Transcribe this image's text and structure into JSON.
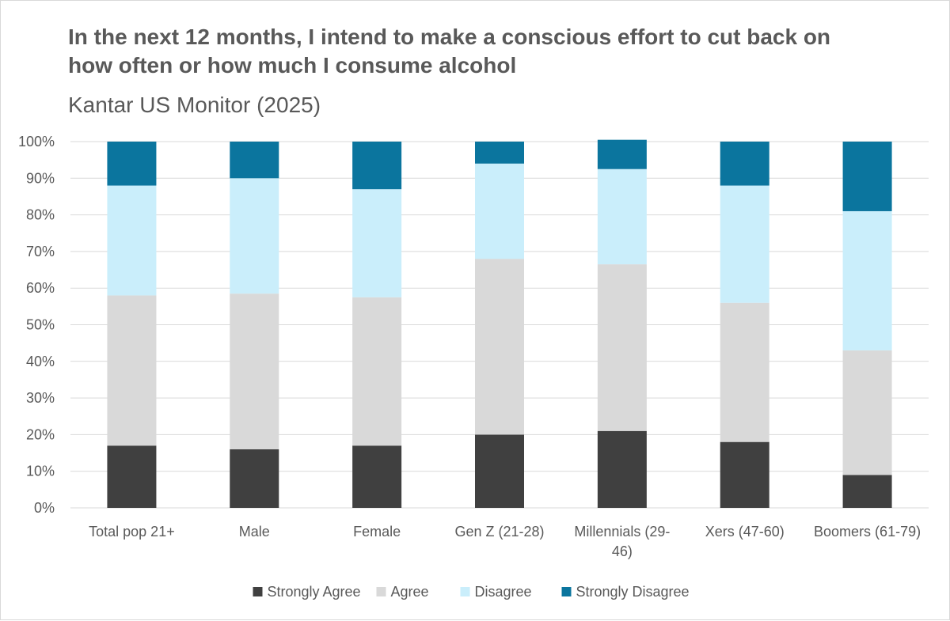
{
  "title": "In the next 12 months, I intend to make a conscious effort to cut back on how often or how much I consume alcohol",
  "subtitle": "Kantar US Monitor (2025)",
  "chart_data": {
    "type": "bar",
    "stacked": true,
    "percent": true,
    "title": "In the next 12 months, I intend to make a conscious effort to cut back on how often or how much I consume alcohol",
    "subtitle": "Kantar US Monitor (2025)",
    "categories": [
      "Total pop 21+",
      "Male",
      "Female",
      "Gen Z (21-28)",
      "Millennials (29-46)",
      "Xers (47-60)",
      "Boomers (61-79)"
    ],
    "category_lines": [
      [
        "Total pop 21+"
      ],
      [
        "Male"
      ],
      [
        "Female"
      ],
      [
        "Gen Z (21-28)"
      ],
      [
        "Millennials (29-",
        "46)"
      ],
      [
        "Xers (47-60)"
      ],
      [
        "Boomers (61-79)"
      ]
    ],
    "series": [
      {
        "name": "Strongly Agree",
        "color": "#404040",
        "values": [
          17,
          16,
          17,
          20,
          21,
          18,
          9
        ]
      },
      {
        "name": "Agree",
        "color": "#d9d9d9",
        "values": [
          41,
          42.5,
          40.5,
          48,
          45.5,
          38,
          34
        ]
      },
      {
        "name": "Disagree",
        "color": "#caeefb",
        "values": [
          30,
          31.5,
          29.5,
          26,
          26,
          32,
          38
        ]
      },
      {
        "name": "Strongly Disagree",
        "color": "#0b759e",
        "values": [
          12,
          10,
          13,
          6,
          8,
          12,
          19
        ]
      }
    ],
    "ylim": [
      0,
      100
    ],
    "yticks": [
      "0%",
      "10%",
      "20%",
      "30%",
      "40%",
      "50%",
      "60%",
      "70%",
      "80%",
      "90%",
      "100%"
    ],
    "xlabel": "",
    "ylabel": "",
    "grid": true,
    "legend": "bottom",
    "gridColor": "#d9d9d9"
  }
}
